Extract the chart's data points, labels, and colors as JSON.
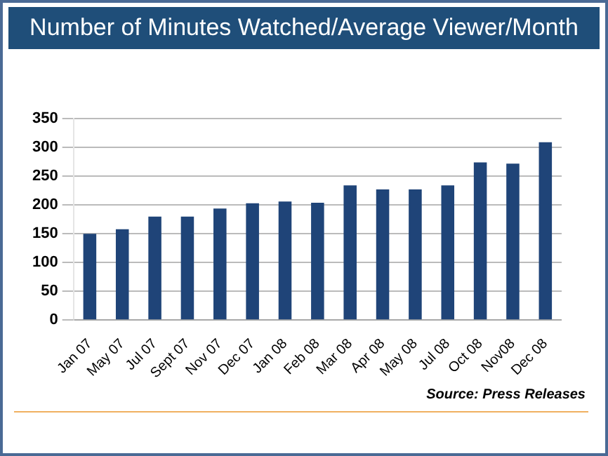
{
  "chart_data": {
    "type": "bar",
    "title": "Number of Minutes Watched/Average Viewer/Month",
    "categories": [
      "Jan 07",
      "May 07",
      "Jul 07",
      "Sept 07",
      "Nov 07",
      "Dec 07",
      "Jan 08",
      "Feb 08",
      "Mar 08",
      "Apr 08",
      "May 08",
      "Jul 08",
      "Oct 08",
      "Nov08",
      "Dec 08"
    ],
    "values": [
      150,
      158,
      180,
      180,
      194,
      203,
      206,
      204,
      234,
      227,
      227,
      234,
      274,
      272,
      309
    ],
    "color": "#1f4478",
    "ylim": [
      0,
      350
    ],
    "yticks": [
      0,
      50,
      100,
      150,
      200,
      250,
      300,
      350
    ],
    "grid": "y",
    "annotations": [
      "Source: Press Releases"
    ]
  }
}
